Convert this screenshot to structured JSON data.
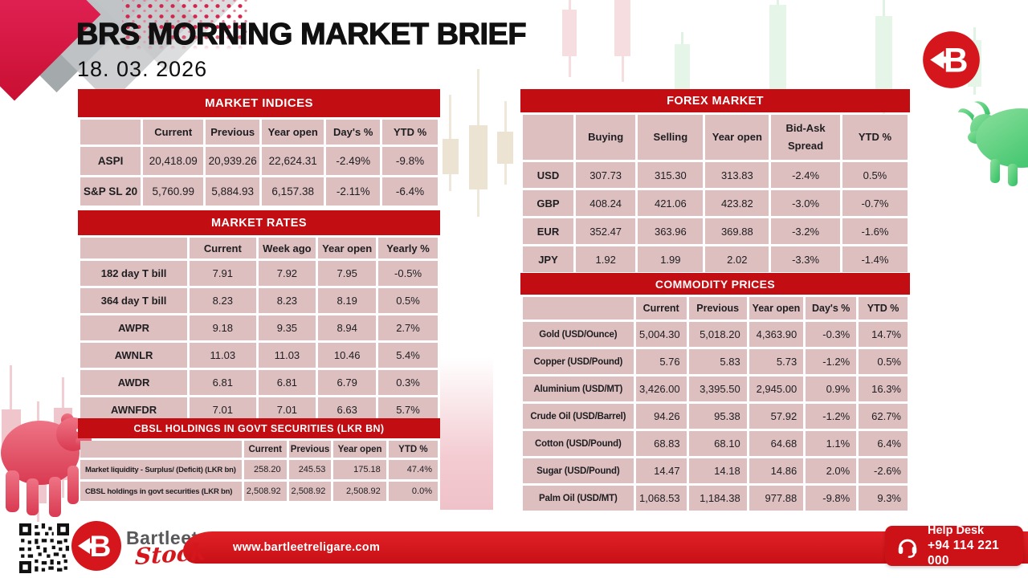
{
  "page": {
    "title": "BRS MORNING MARKET BRIEF",
    "date": "18. 03. 2026"
  },
  "colors": {
    "band_red": "#c20d12",
    "row_pink": "#ddbfc0",
    "brand_red": "#d5161d",
    "footer_red": "#d0141b",
    "bear_pink": "#e25b6f",
    "bull_green": "#4ecb72",
    "text_dark": "#1e1d20"
  },
  "icons": {
    "brand": "bartleet-b-arrow-icon",
    "help_desk": "headset-icon",
    "qr": "qr-code",
    "bull": "bull-silhouette",
    "bear": "bear-silhouette"
  },
  "tables": {
    "market_indices": {
      "title": "MARKET INDICES",
      "columns": [
        "",
        "Current",
        "Previous",
        "Year open",
        "Day's %",
        "YTD %"
      ],
      "rows": [
        [
          "ASPI",
          "20,418.09",
          "20,939.26",
          "22,624.31",
          "-2.49%",
          "-9.8%"
        ],
        [
          "S&P SL 20",
          "5,760.99",
          "5,884.93",
          "6,157.38",
          "-2.11%",
          "-6.4%"
        ]
      ]
    },
    "market_rates": {
      "title": "MARKET RATES",
      "columns": [
        "",
        "Current",
        "Week ago",
        "Year open",
        "Yearly %"
      ],
      "rows": [
        [
          "182 day T bill",
          "7.91",
          "7.92",
          "7.95",
          "-0.5%"
        ],
        [
          "364 day T bill",
          "8.23",
          "8.23",
          "8.19",
          "0.5%"
        ],
        [
          "AWPR",
          "9.18",
          "9.35",
          "8.94",
          "2.7%"
        ],
        [
          "AWNLR",
          "11.03",
          "11.03",
          "10.46",
          "5.4%"
        ],
        [
          "AWDR",
          "6.81",
          "6.81",
          "6.79",
          "0.3%"
        ],
        [
          "AWNFDR",
          "7.01",
          "7.01",
          "6.63",
          "5.7%"
        ]
      ]
    },
    "cbsl_holdings": {
      "title": "CBSL HOLDINGS IN GOVT SECURITIES (LKR BN)",
      "columns": [
        "",
        "Current",
        "Previous",
        "Year open",
        "YTD %"
      ],
      "rows": [
        [
          "Market liquidity - Surplus/ (Deficit) (LKR bn)",
          "258.20",
          "245.53",
          "175.18",
          "47.4%"
        ],
        [
          "CBSL holdings in govt securities (LKR bn)",
          "2,508.92",
          "2,508.92",
          "2,508.92",
          "0.0%"
        ]
      ]
    },
    "forex_market": {
      "title": "FOREX MARKET",
      "columns": [
        "",
        "Buying",
        "Selling",
        "Year open",
        "Bid-Ask Spread",
        "YTD %"
      ],
      "rows": [
        [
          "USD",
          "307.73",
          "315.30",
          "313.83",
          "-2.4%",
          "0.5%"
        ],
        [
          "GBP",
          "408.24",
          "421.06",
          "423.82",
          "-3.0%",
          "-0.7%"
        ],
        [
          "EUR",
          "352.47",
          "363.96",
          "369.88",
          "-3.2%",
          "-1.6%"
        ],
        [
          "JPY",
          "1.92",
          "1.99",
          "2.02",
          "-3.3%",
          "-1.4%"
        ]
      ]
    },
    "commodity_prices": {
      "title": "COMMODITY PRICES",
      "columns": [
        "",
        "Current",
        "Previous",
        "Year open",
        "Day's %",
        "YTD %"
      ],
      "rows": [
        [
          "Gold (USD/Ounce)",
          "5,004.30",
          "5,018.20",
          "4,363.90",
          "-0.3%",
          "14.7%"
        ],
        [
          "Copper (USD/Pound)",
          "5.76",
          "5.83",
          "5.73",
          "-1.2%",
          "0.5%"
        ],
        [
          "Aluminium (USD/MT)",
          "3,426.00",
          "3,395.50",
          "2,945.00",
          "0.9%",
          "16.3%"
        ],
        [
          "Crude Oil (USD/Barrel)",
          "94.26",
          "95.38",
          "57.92",
          "-1.2%",
          "62.7%"
        ],
        [
          "Cotton (USD/Pound)",
          "68.83",
          "68.10",
          "64.68",
          "1.1%",
          "6.4%"
        ],
        [
          "Sugar (USD/Pound)",
          "14.47",
          "14.18",
          "14.86",
          "2.0%",
          "-2.6%"
        ],
        [
          "Palm Oil (USD/MT)",
          "1,068.53",
          "1,184.38",
          "977.88",
          "-9.8%",
          "9.3%"
        ]
      ]
    }
  },
  "footer": {
    "brand_name": "Bartleet",
    "brand_sub": "Stock",
    "website": "www.bartleetreligare.com",
    "help_desk_label": "Help Desk",
    "help_desk_phone": "+94 114 221 000",
    "logo_letter": "B"
  }
}
